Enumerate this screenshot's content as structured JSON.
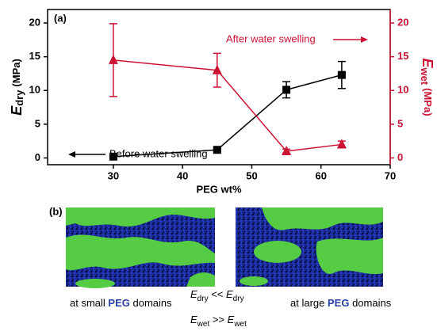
{
  "chart_data": {
    "type": "line",
    "panel_label": "(a)",
    "x_label": "PEG wt%",
    "y_label": {
      "main": "E",
      "sub": "dry",
      "unit": "(MPa)"
    },
    "y2_label": {
      "main": "E",
      "sub": "wet",
      "unit": "(MPa)"
    },
    "xlim": [
      20.5,
      70
    ],
    "xticks": [
      30,
      40,
      50,
      60,
      70
    ],
    "ylim": [
      -1,
      22
    ],
    "yticks": [
      0,
      5,
      10,
      15,
      20
    ],
    "y2lim": [
      -1,
      22
    ],
    "y2ticks": [
      0,
      5,
      10,
      15,
      20
    ],
    "annotations": [
      "After water swelling",
      "Before water swelling"
    ],
    "series": [
      {
        "name": "Before water swelling",
        "color": "#000000",
        "marker": "square",
        "x": [
          30,
          45,
          55,
          63
        ],
        "values": [
          0.2,
          1.2,
          10.1,
          12.3
        ],
        "errors": [
          0.1,
          0.2,
          1.2,
          2.0
        ]
      },
      {
        "name": "After water swelling",
        "color": "#cc1133",
        "marker": "triangle",
        "axis": "y2",
        "x": [
          30,
          45,
          55,
          63
        ],
        "values": [
          14.5,
          13.0,
          1.0,
          2.0
        ],
        "errors": [
          5.4,
          2.5,
          0.3,
          0.5
        ]
      }
    ]
  },
  "panel_b": {
    "label": "(b)",
    "left_text": [
      "at small ",
      "PEG",
      " domains"
    ],
    "right_text": [
      "at large ",
      "PEG",
      " domains"
    ],
    "relation_dry": {
      "e": "E",
      "sub": "dry",
      "op": " << "
    },
    "relation_wet": {
      "e": "E",
      "sub": "wet",
      "op": " >> "
    }
  }
}
